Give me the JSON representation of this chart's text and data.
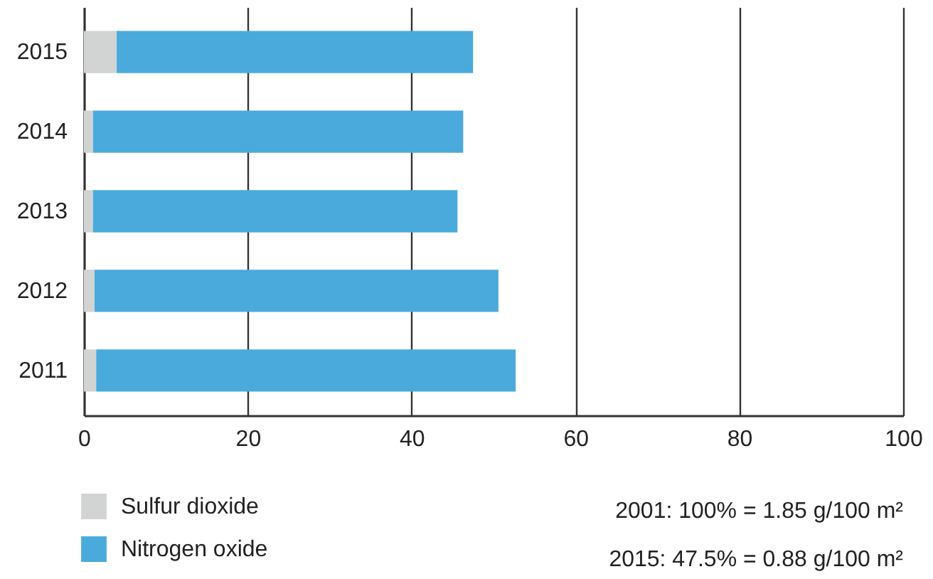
{
  "chart_data": {
    "type": "bar",
    "orientation": "horizontal",
    "stacked": true,
    "categories": [
      "2015",
      "2014",
      "2013",
      "2012",
      "2011"
    ],
    "series": [
      {
        "name": "Sulfur dioxide",
        "color": "#d2d3d3",
        "values": [
          4.0,
          1.1,
          1.1,
          1.3,
          1.5
        ]
      },
      {
        "name": "Nitrogen oxide",
        "color": "#4aaadb",
        "values": [
          43.5,
          45.2,
          44.5,
          49.3,
          51.2
        ]
      }
    ],
    "xlim": [
      0,
      100
    ],
    "xticks": [
      0,
      20,
      40,
      60,
      80,
      100
    ],
    "grid": "x",
    "legend": "bottom left",
    "annotations": [
      "2001: 100% = 1.85 g/100 m²",
      "2015: 47.5% = 0.88 g/100 m²"
    ]
  }
}
